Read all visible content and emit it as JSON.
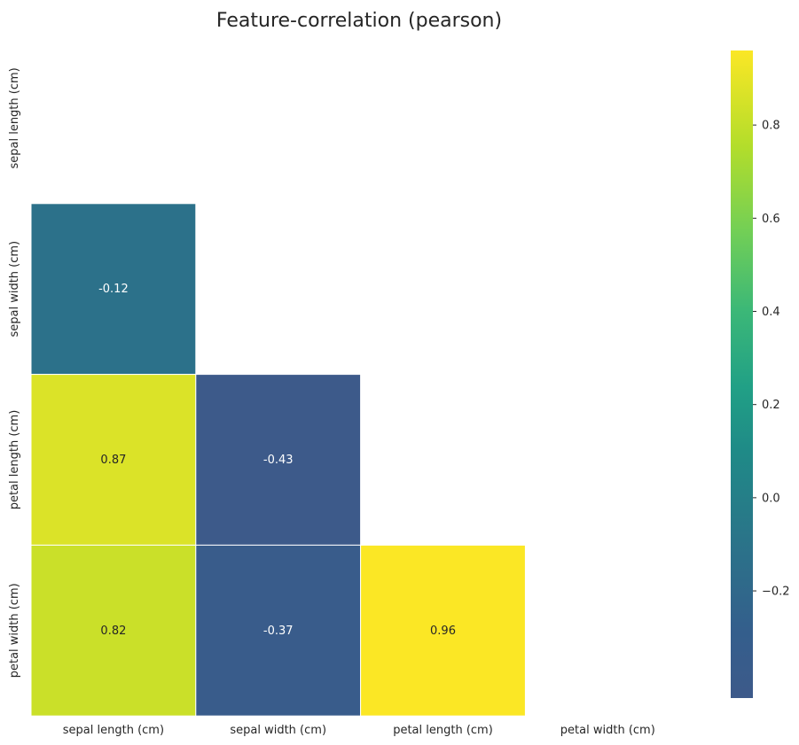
{
  "chart_data": {
    "type": "heatmap",
    "title": "Feature-correlation (pearson)",
    "mask": "upper-triangle",
    "rows": [
      "sepal length (cm)",
      "sepal width (cm)",
      "petal length (cm)",
      "petal width (cm)"
    ],
    "cols": [
      "sepal length (cm)",
      "sepal width (cm)",
      "petal length (cm)",
      "petal width (cm)"
    ],
    "cells": [
      {
        "row": 1,
        "col": 0,
        "value": -0.12,
        "label": "-0.12"
      },
      {
        "row": 2,
        "col": 0,
        "value": 0.87,
        "label": "0.87"
      },
      {
        "row": 2,
        "col": 1,
        "value": -0.43,
        "label": "-0.43"
      },
      {
        "row": 3,
        "col": 0,
        "value": 0.82,
        "label": "0.82"
      },
      {
        "row": 3,
        "col": 1,
        "value": -0.37,
        "label": "-0.37"
      },
      {
        "row": 3,
        "col": 2,
        "value": 0.96,
        "label": "0.96"
      }
    ],
    "colorbar": {
      "colormap": "viridis",
      "vmin": -0.43,
      "vmax": 0.96,
      "tick_labels": [
        "0.8",
        "0.6",
        "0.4",
        "0.2",
        "0.0",
        "−0.2"
      ],
      "tick_values": [
        0.8,
        0.6,
        0.4,
        0.2,
        0.0,
        -0.2
      ]
    }
  }
}
